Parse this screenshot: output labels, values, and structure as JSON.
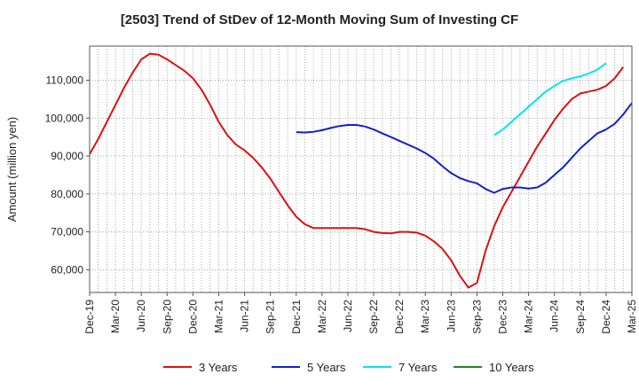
{
  "chart_data": {
    "type": "line",
    "title": "[2503]  Trend of StDev of 12-Month Moving Sum of Investing CF",
    "xlabel": "",
    "ylabel": "Amount (million yen)",
    "x_tick_labels": [
      "Dec-19",
      "Mar-20",
      "Jun-20",
      "Sep-20",
      "Dec-20",
      "Mar-21",
      "Jun-21",
      "Sep-21",
      "Dec-21",
      "Mar-22",
      "Jun-22",
      "Sep-22",
      "Dec-22",
      "Mar-23",
      "Jun-23",
      "Sep-23",
      "Dec-23",
      "Mar-24",
      "Jun-24",
      "Sep-24",
      "Dec-24",
      "Mar-25"
    ],
    "y_ticks": [
      60000,
      70000,
      80000,
      90000,
      100000,
      110000
    ],
    "y_tick_labels": [
      "60,000",
      "70,000",
      "80,000",
      "90,000",
      "100,000",
      "110,000"
    ],
    "ylim": [
      54000,
      119000
    ],
    "grid": true,
    "legend_position": "bottom",
    "series": [
      {
        "name": "3 Years",
        "color": "#dd1111",
        "start": "Dec-19",
        "values": [
          90500,
          94500,
          99000,
          103500,
          108000,
          112000,
          115500,
          117000,
          116700,
          115500,
          114000,
          112500,
          110500,
          107500,
          103500,
          99000,
          95500,
          93000,
          91500,
          89500,
          87000,
          84000,
          80500,
          77000,
          74000,
          72000,
          71000,
          71000,
          71000,
          71000,
          71000,
          71000,
          70700,
          70000,
          69700,
          69600,
          70000,
          70000,
          69800,
          69000,
          67500,
          65500,
          62500,
          58500,
          55300,
          56500,
          65000,
          71500,
          76500,
          80500,
          84500,
          88500,
          92500,
          96000,
          99500,
          102500,
          105000,
          106500,
          107000,
          107500,
          108500,
          110500,
          113500
        ]
      },
      {
        "name": "5 Years",
        "color": "#1122cc",
        "start": "Dec-21",
        "values": [
          96300,
          96200,
          96400,
          96800,
          97400,
          97900,
          98200,
          98200,
          97800,
          97000,
          96000,
          95000,
          94000,
          93000,
          92000,
          90800,
          89300,
          87300,
          85500,
          84200,
          83400,
          82800,
          81300,
          80300,
          81300,
          81700,
          81700,
          81400,
          81700,
          83000,
          85000,
          87000,
          89500,
          92000,
          94000,
          96000,
          97000,
          98500,
          101000,
          104000
        ]
      },
      {
        "name": "7 Years",
        "color": "#00e5ee",
        "start": "Nov-23",
        "values": [
          95500,
          97000,
          99000,
          101000,
          103000,
          105000,
          107000,
          108500,
          109800,
          110500,
          111000,
          111800,
          112800,
          114500
        ]
      },
      {
        "name": "10 Years",
        "color": "#228822",
        "start": "",
        "values": []
      }
    ]
  }
}
